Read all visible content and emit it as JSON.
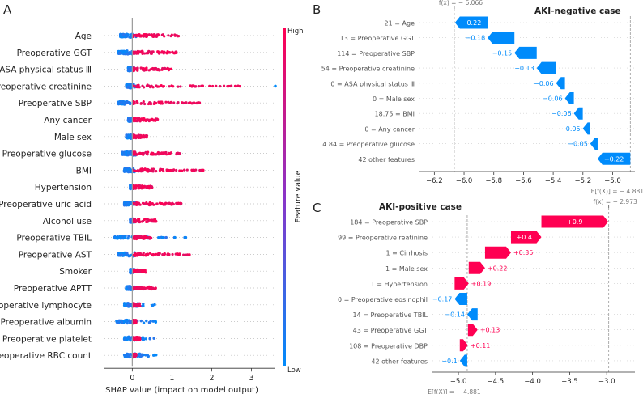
{
  "chart_data": [
    {
      "panel": "A",
      "type": "scatter",
      "subtype": "shap-beeswarm",
      "xlabel": "SHAP value (impact on model output)",
      "xlim": [
        -0.7,
        3.6
      ],
      "xticks": [
        0,
        1,
        2,
        3
      ],
      "colorbar": {
        "label": "Feature value",
        "high": "High",
        "low": "Low",
        "high_color": "#ff0052",
        "low_color": "#008bfb"
      },
      "features": [
        {
          "name": "Age",
          "low_min": -0.3,
          "low_max": 0.1,
          "high_max": 1.2,
          "outlier": null
        },
        {
          "name": "Preoperative GGT",
          "low_min": -0.35,
          "low_max": 0.05,
          "high_max": 1.2,
          "outlier": null
        },
        {
          "name": "ASA physical status Ⅲ",
          "low_min": -0.1,
          "low_max": 0.05,
          "high_max": 1.0,
          "outlier": null
        },
        {
          "name": "Preoperative creatinine",
          "low_min": -0.15,
          "low_max": 0.1,
          "high_max": 2.9,
          "outlier": 3.6
        },
        {
          "name": "Preoperative SBP",
          "low_min": -0.35,
          "low_max": 0.05,
          "high_max": 1.7,
          "outlier": null
        },
        {
          "name": "Any cancer",
          "low_min": -0.1,
          "low_max": 0.05,
          "high_max": 0.7,
          "outlier": null
        },
        {
          "name": "Male sex",
          "low_min": -0.15,
          "low_max": 0.05,
          "high_max": 0.4,
          "outlier": null
        },
        {
          "name": "Preoperative glucose",
          "low_min": -0.25,
          "low_max": 0.1,
          "high_max": 1.2,
          "outlier": null
        },
        {
          "name": "BMI",
          "low_min": -0.2,
          "low_max": 0.1,
          "high_max": 1.8,
          "outlier": null
        },
        {
          "name": "Hypertension",
          "low_min": -0.05,
          "low_max": 0.05,
          "high_max": 0.5,
          "outlier": null
        },
        {
          "name": "Preoperative uric acid",
          "low_min": -0.2,
          "low_max": 0.1,
          "high_max": 1.3,
          "outlier": null
        },
        {
          "name": "Alcohol use",
          "low_min": -0.05,
          "low_max": 0.05,
          "high_max": 0.6,
          "outlier": null
        },
        {
          "name": "Preoperative TBIL",
          "low_min": -0.45,
          "low_max": 1.4,
          "high_max": 0.5,
          "outlier": null
        },
        {
          "name": "Preoperative AST",
          "low_min": -0.35,
          "low_max": 0.1,
          "high_max": 1.5,
          "outlier": null
        },
        {
          "name": "Smoker",
          "low_min": -0.05,
          "low_max": 0.05,
          "high_max": 0.35,
          "outlier": null
        },
        {
          "name": "Preoperative APTT",
          "low_min": -0.15,
          "low_max": 0.1,
          "high_max": 0.6,
          "outlier": null
        },
        {
          "name": "Preoperative lymphocyte",
          "low_min": -0.2,
          "low_max": 0.6,
          "high_max": 0.2,
          "outlier": null
        },
        {
          "name": "Preoperative albumin",
          "low_min": -0.4,
          "low_max": 0.6,
          "high_max": 0.1,
          "outlier": null
        },
        {
          "name": "Preoperative platelet",
          "low_min": -0.2,
          "low_max": 0.6,
          "high_max": 0.2,
          "outlier": null
        },
        {
          "name": "Preoperative RBC count",
          "low_min": -0.2,
          "low_max": 0.6,
          "high_max": 0.1,
          "outlier": null
        }
      ]
    },
    {
      "panel": "B",
      "type": "bar",
      "subtype": "shap-waterfall",
      "title": "AKI-negative case",
      "fx_label": "f(x) = − 6.066",
      "efx_label": "E[f(X)] = − 4.881",
      "fx": -6.066,
      "efx": -4.881,
      "xlim": [
        -6.3,
        -4.85
      ],
      "xticks": [
        -6.2,
        -6.0,
        -5.8,
        -5.6,
        -5.4,
        -5.2,
        -5.0
      ],
      "xticklabels": [
        "−6.2",
        "−6.0",
        "−5.8",
        "−5.6",
        "−5.4",
        "−5.2",
        "−5.0"
      ],
      "rows": [
        {
          "label": "21 = Age",
          "value": -0.22,
          "text": "−0.22"
        },
        {
          "label": "13 = Preoperative GGT",
          "value": -0.18,
          "text": "−0.18"
        },
        {
          "label": "114 = Preoperative SBP",
          "value": -0.15,
          "text": "−0.15"
        },
        {
          "label": "54 = Preoperative creatinine",
          "value": -0.13,
          "text": "−0.13"
        },
        {
          "label": "0 = ASA physical status Ⅲ",
          "value": -0.06,
          "text": "−0.06"
        },
        {
          "label": "0 = Male sex",
          "value": -0.06,
          "text": "−0.06"
        },
        {
          "label": "18.75 = BMI",
          "value": -0.06,
          "text": "−0.06"
        },
        {
          "label": "0 = Any cancer",
          "value": -0.05,
          "text": "−0.05"
        },
        {
          "label": "4.84 = Preoperative glucose",
          "value": -0.05,
          "text": "−0.05"
        },
        {
          "label": "42 other features",
          "value": -0.22,
          "text": "−0.22"
        }
      ]
    },
    {
      "panel": "C",
      "type": "bar",
      "subtype": "shap-waterfall",
      "title": "AKI-positive case",
      "fx_label": "f(x) = − 2.973",
      "efx_label": "E[f(X)] = − 4.881",
      "fx": -2.973,
      "efx": -4.881,
      "xlim": [
        -5.35,
        -2.62
      ],
      "xticks": [
        -5.0,
        -4.5,
        -4.0,
        -3.5,
        -3.0
      ],
      "xticklabels": [
        "−5.0",
        "−4.5",
        "−4.0",
        "−3.5",
        "−3.0"
      ],
      "rows": [
        {
          "label": "184 = Preoperative SBP",
          "value": 0.9,
          "text": "+0.9"
        },
        {
          "label": "99 = Preoperative    reatinine",
          "value": 0.41,
          "text": "+0.41"
        },
        {
          "label": "1 = Cirrhosis",
          "value": 0.35,
          "text": "+0.35"
        },
        {
          "label": "1 = Male sex",
          "value": 0.22,
          "text": "+0.22"
        },
        {
          "label": "1 = Hypertension",
          "value": 0.19,
          "text": "+0.19"
        },
        {
          "label": "0 = Preoperative eosinophil",
          "value": -0.17,
          "text": "−0.17"
        },
        {
          "label": "14 = Preoperative TBIL",
          "value": -0.14,
          "text": "−0.14"
        },
        {
          "label": "43 = Preoperative GGT",
          "value": 0.13,
          "text": "+0.13"
        },
        {
          "label": "108 = Preoperative DBP",
          "value": 0.11,
          "text": "+0.11"
        },
        {
          "label": "42 other features",
          "value": -0.1,
          "text": "−0.1"
        }
      ]
    }
  ],
  "panel_letters": {
    "a": "A",
    "b": "B",
    "c": "C"
  },
  "colors": {
    "positive": "#ff0052",
    "negative": "#008bfb",
    "axis": "#333333",
    "grid": "#cccccc"
  }
}
